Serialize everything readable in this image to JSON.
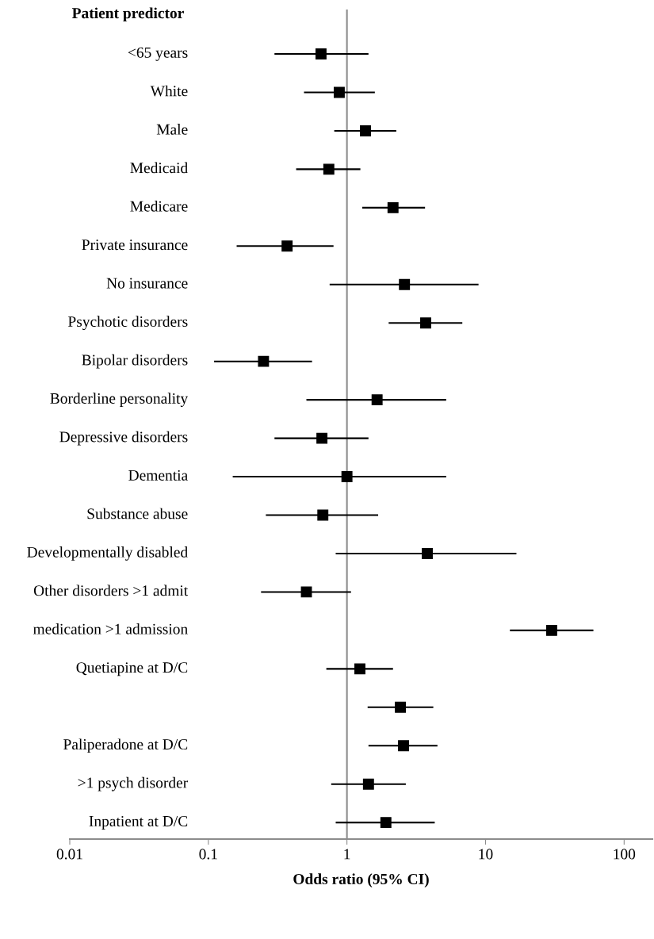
{
  "chart_data": {
    "type": "scatter",
    "orientation": "horizontal",
    "title": "Patient predictor",
    "xlabel": "Odds ratio (95% CI)",
    "categories": [
      "<65 years",
      "White",
      "Male",
      "Medicaid",
      "Medicare",
      "Private insurance",
      "No insurance",
      "Psychotic disorders",
      "Bipolar disorders",
      "Borderline personality",
      "Depressive disorders",
      "Dementia",
      "Substance abuse",
      "Developmentally disabled",
      "Other disorders >1 admit",
      "medication >1 admission",
      "Quetiapine at D/C",
      null,
      "Paliperadone at D/C",
      ">1 psych disorder",
      "Inpatient at D/C"
    ],
    "series": [
      {
        "color": "#000000",
        "values": [
          0.65,
          0.88,
          1.36,
          0.74,
          2.15,
          0.37,
          2.6,
          3.7,
          0.25,
          1.65,
          0.66,
          1.0,
          0.67,
          3.8,
          0.51,
          30,
          1.24,
          2.43,
          2.56,
          1.43,
          1.91
        ],
        "errors": [
          [
            0.3,
            1.43
          ],
          [
            0.49,
            1.59
          ],
          [
            0.81,
            2.27
          ],
          [
            0.43,
            1.25
          ],
          [
            1.29,
            3.66
          ],
          [
            0.16,
            0.8
          ],
          [
            0.75,
            8.9
          ],
          [
            2.0,
            6.8
          ],
          [
            0.11,
            0.56
          ],
          [
            0.51,
            5.2
          ],
          [
            0.3,
            1.43
          ],
          [
            0.15,
            5.2
          ],
          [
            0.26,
            1.68
          ],
          [
            0.83,
            16.7
          ],
          [
            0.24,
            1.07
          ],
          [
            15,
            60
          ],
          [
            0.71,
            2.15
          ],
          [
            1.41,
            4.2
          ],
          [
            1.43,
            4.5
          ],
          [
            0.77,
            2.66
          ],
          [
            0.83,
            4.3
          ]
        ]
      }
    ],
    "marker": "square",
    "log": "x",
    "xlim": [
      0.01,
      160
    ],
    "xticks": [
      0.01,
      0.1,
      1,
      10,
      100
    ],
    "ref_lines": [
      {
        "axis": "x",
        "value": 1,
        "color": "#8c8c8c"
      }
    ],
    "grid": false,
    "legend": false
  }
}
